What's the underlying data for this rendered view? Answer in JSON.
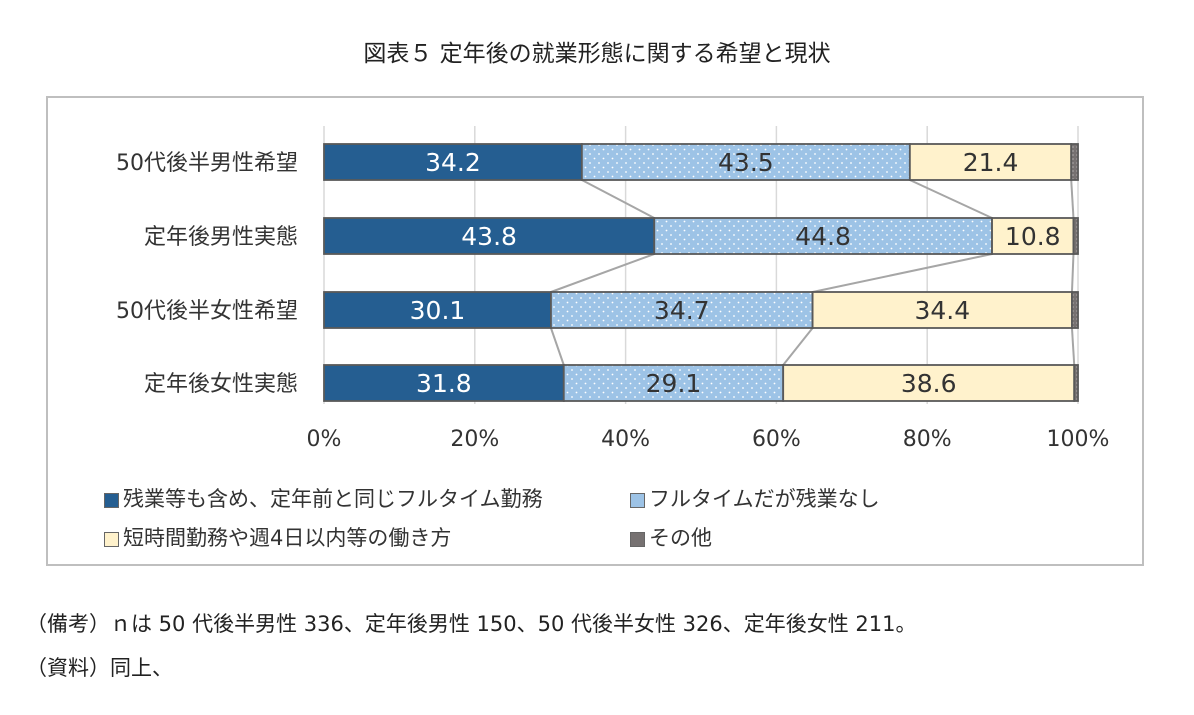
{
  "title": "図表５ 定年後の就業形態に関する希望と現状",
  "chart_data": {
    "type": "bar",
    "orientation": "horizontal",
    "stacked": true,
    "categories": [
      "50代後半男性希望",
      "定年後男性実態",
      "50代後半女性希望",
      "定年後女性実態"
    ],
    "series": [
      {
        "name": "残業等も含め、定年前と同じフルタイム勤務",
        "values": [
          34.2,
          43.8,
          30.1,
          31.8
        ],
        "color": "#255e91",
        "label_color": "#ffffff"
      },
      {
        "name": "フルタイムだが残業なし",
        "values": [
          43.5,
          44.8,
          34.7,
          29.1
        ],
        "color": "#9dc3e6",
        "pattern": "dots",
        "label_color": "#333333"
      },
      {
        "name": "短時間勤務や週4日以内等の働き方",
        "values": [
          21.4,
          10.8,
          34.4,
          38.6
        ],
        "color": "#fff2cc",
        "label_color": "#333333"
      },
      {
        "name": "その他",
        "values": [
          0.9,
          0.6,
          0.8,
          0.5
        ],
        "color": "#767171",
        "pattern": "dots",
        "show_label": false
      }
    ],
    "xlim": [
      0,
      100
    ],
    "x_ticks": [
      "0%",
      "20%",
      "40%",
      "60%",
      "80%",
      "100%"
    ],
    "grid": true,
    "series_lines": true,
    "legend_position": "bottom"
  },
  "legend": [
    {
      "label": "残業等も含め、定年前と同じフルタイム勤務",
      "color": "#255e91"
    },
    {
      "label": "フルタイムだが残業なし",
      "color": "#9dc3e6"
    },
    {
      "label": "短時間勤務や週4日以内等の働き方",
      "color": "#fff2cc"
    },
    {
      "label": "その他",
      "color": "#767171"
    }
  ],
  "notes": {
    "note1": "（備考）ｎは 50 代後半男性 336、定年後男性 150、50 代後半女性 326、定年後女性 211。",
    "note2": "（資料）同上、"
  }
}
